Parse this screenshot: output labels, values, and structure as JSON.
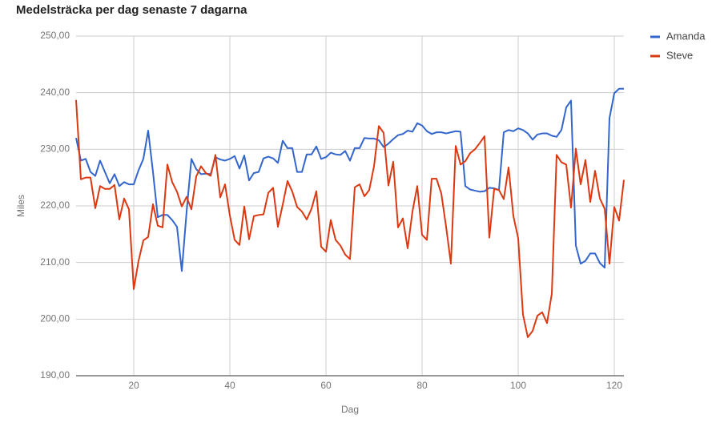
{
  "chart_data": {
    "type": "line",
    "title": "Medelsträcka per dag senaste 7 dagarna",
    "x_label": "Dag",
    "y_label": "Miles",
    "xlim": [
      8,
      122
    ],
    "ylim": [
      190,
      250
    ],
    "xticks": [
      20,
      40,
      60,
      80,
      100,
      120
    ],
    "yticks": [
      {
        "value": 190,
        "label": "190,00"
      },
      {
        "value": 200,
        "label": "200,00"
      },
      {
        "value": 210,
        "label": "210,00"
      },
      {
        "value": 220,
        "label": "220,00"
      },
      {
        "value": 230,
        "label": "230,00"
      },
      {
        "value": 240,
        "label": "240,00"
      },
      {
        "value": 250,
        "label": "250,00"
      }
    ],
    "grid": true,
    "legend": "right",
    "x": [
      8,
      9,
      10,
      11,
      12,
      13,
      14,
      15,
      16,
      17,
      18,
      19,
      20,
      21,
      22,
      23,
      24,
      25,
      26,
      27,
      28,
      29,
      30,
      31,
      32,
      33,
      34,
      35,
      36,
      37,
      38,
      39,
      40,
      41,
      42,
      43,
      44,
      45,
      46,
      47,
      48,
      49,
      50,
      51,
      52,
      53,
      54,
      55,
      56,
      57,
      58,
      59,
      60,
      61,
      62,
      63,
      64,
      65,
      66,
      67,
      68,
      69,
      70,
      71,
      72,
      73,
      74,
      75,
      76,
      77,
      78,
      79,
      80,
      81,
      82,
      83,
      84,
      85,
      86,
      87,
      88,
      89,
      90,
      91,
      92,
      93,
      94,
      95,
      96,
      97,
      98,
      99,
      100,
      101,
      102,
      103,
      104,
      105,
      106,
      107,
      108,
      109,
      110,
      111,
      112,
      113,
      114,
      115,
      116,
      117,
      118,
      119,
      120,
      121,
      122
    ],
    "series": [
      {
        "name": "Amanda",
        "color": "#3366cc",
        "values": [
          232,
          228,
          228.3,
          226,
          225.3,
          228,
          226,
          224,
          225.6,
          223.5,
          224.2,
          223.8,
          223.8,
          226.3,
          228.3,
          233.3,
          226,
          218,
          218.4,
          218.4,
          217.5,
          216.3,
          208.5,
          219,
          228.3,
          226.5,
          225.6,
          225.7,
          225.6,
          228.6,
          228.2,
          228,
          228.3,
          228.8,
          226.6,
          228.9,
          224.5,
          225.8,
          226,
          228.4,
          228.7,
          228.4,
          227.6,
          231.5,
          230.2,
          230.2,
          226,
          226,
          229.1,
          229.1,
          230.5,
          228.3,
          228.6,
          229.4,
          229.1,
          229,
          229.7,
          228,
          230.2,
          230.2,
          232,
          231.9,
          231.9,
          231.6,
          230.4,
          231,
          231.8,
          232.5,
          232.7,
          233.3,
          233.1,
          234.6,
          234.2,
          233.2,
          232.7,
          233,
          233,
          232.8,
          233,
          233.2,
          233.1,
          223.5,
          222.9,
          222.7,
          222.5,
          222.6,
          223.2,
          223.1,
          222.8,
          233,
          233.4,
          233.2,
          233.7,
          233.4,
          232.8,
          231.7,
          232.6,
          232.8,
          232.8,
          232.4,
          232.2,
          233.4,
          237.4,
          238.6,
          213,
          209.8,
          210.3,
          211.6,
          211.6,
          209.9,
          209.1,
          235.5,
          239.9,
          240.7,
          240.7
        ]
      },
      {
        "name": "Steve",
        "color": "#dc3912",
        "values": [
          238.7,
          224.7,
          225,
          225,
          219.6,
          223.5,
          223,
          223,
          223.7,
          217.6,
          221.3,
          219.4,
          205.3,
          210.3,
          213.9,
          214.5,
          220.3,
          216.5,
          216.2,
          227.3,
          224.2,
          222.5,
          219.9,
          221.6,
          219.4,
          225.2,
          227,
          225.8,
          225.3,
          229,
          221.5,
          223.8,
          218.3,
          214,
          213.1,
          219.9,
          214.1,
          218.2,
          218.4,
          218.5,
          222.3,
          223.2,
          216.3,
          220.2,
          224.4,
          222.5,
          219.8,
          219,
          217.6,
          219.5,
          222.6,
          212.8,
          211.9,
          217.5,
          214,
          213,
          211.4,
          210.6,
          223.3,
          223.8,
          221.7,
          222.8,
          227,
          234.1,
          232.9,
          223.6,
          227.8,
          216.2,
          217.8,
          212.5,
          219,
          223.5,
          214.9,
          214,
          224.8,
          224.8,
          222.2,
          216.3,
          209.8,
          230.6,
          227.3,
          227.9,
          229.3,
          230,
          231.1,
          232.3,
          214.4,
          223,
          222.8,
          221.2,
          226.8,
          218.2,
          214.3,
          200.8,
          196.8,
          197.9,
          200.6,
          201.2,
          199.3,
          204.5,
          229,
          227.7,
          227.3,
          219.7,
          230.1,
          223.8,
          228.1,
          220.7,
          226.2,
          221.3,
          219.5,
          209.8,
          219.8,
          217.4,
          224.6
        ]
      }
    ]
  }
}
